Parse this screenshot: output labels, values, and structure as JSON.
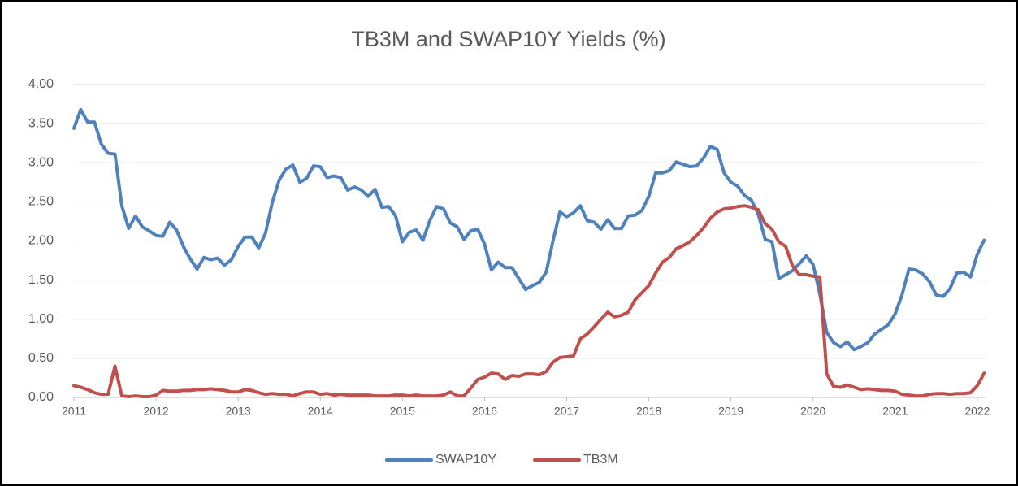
{
  "chart_data": {
    "type": "line",
    "title": "TB3M and SWAP10Y Yields (%)",
    "x": [
      2011,
      2011.083,
      2011.167,
      2011.25,
      2011.333,
      2011.417,
      2011.5,
      2011.583,
      2011.667,
      2011.75,
      2011.833,
      2011.917,
      2012,
      2012.083,
      2012.167,
      2012.25,
      2012.333,
      2012.417,
      2012.5,
      2012.583,
      2012.667,
      2012.75,
      2012.833,
      2012.917,
      2013,
      2013.083,
      2013.167,
      2013.25,
      2013.333,
      2013.417,
      2013.5,
      2013.583,
      2013.667,
      2013.75,
      2013.833,
      2013.917,
      2014,
      2014.083,
      2014.167,
      2014.25,
      2014.333,
      2014.417,
      2014.5,
      2014.583,
      2014.667,
      2014.75,
      2014.833,
      2014.917,
      2015,
      2015.083,
      2015.167,
      2015.25,
      2015.333,
      2015.417,
      2015.5,
      2015.583,
      2015.667,
      2015.75,
      2015.833,
      2015.917,
      2016,
      2016.083,
      2016.167,
      2016.25,
      2016.333,
      2016.417,
      2016.5,
      2016.583,
      2016.667,
      2016.75,
      2016.833,
      2016.917,
      2017,
      2017.083,
      2017.167,
      2017.25,
      2017.333,
      2017.417,
      2017.5,
      2017.583,
      2017.667,
      2017.75,
      2017.833,
      2017.917,
      2018,
      2018.083,
      2018.167,
      2018.25,
      2018.333,
      2018.417,
      2018.5,
      2018.583,
      2018.667,
      2018.75,
      2018.833,
      2018.917,
      2019,
      2019.083,
      2019.167,
      2019.25,
      2019.333,
      2019.417,
      2019.5,
      2019.583,
      2019.667,
      2019.75,
      2019.833,
      2019.917,
      2020,
      2020.083,
      2020.167,
      2020.25,
      2020.333,
      2020.417,
      2020.5,
      2020.583,
      2020.667,
      2020.75,
      2020.833,
      2020.917,
      2021,
      2021.083,
      2021.167,
      2021.25,
      2021.333,
      2021.417,
      2021.5,
      2021.583,
      2021.667,
      2021.75,
      2021.833,
      2021.917,
      2022,
      2022.083
    ],
    "series": [
      {
        "name": "SWAP10Y",
        "color": "#4f81bd",
        "values": [
          3.44,
          3.68,
          3.52,
          3.52,
          3.24,
          3.12,
          3.11,
          2.45,
          2.16,
          2.32,
          2.18,
          2.13,
          2.07,
          2.06,
          2.24,
          2.14,
          1.93,
          1.77,
          1.64,
          1.79,
          1.76,
          1.78,
          1.69,
          1.76,
          1.93,
          2.05,
          2.05,
          1.91,
          2.1,
          2.5,
          2.78,
          2.92,
          2.97,
          2.75,
          2.8,
          2.96,
          2.95,
          2.81,
          2.83,
          2.81,
          2.65,
          2.69,
          2.65,
          2.57,
          2.66,
          2.43,
          2.44,
          2.32,
          1.99,
          2.11,
          2.14,
          2.01,
          2.26,
          2.44,
          2.41,
          2.23,
          2.18,
          2.02,
          2.13,
          2.15,
          1.96,
          1.63,
          1.73,
          1.66,
          1.66,
          1.52,
          1.38,
          1.43,
          1.47,
          1.6,
          2.0,
          2.37,
          2.31,
          2.36,
          2.45,
          2.26,
          2.24,
          2.15,
          2.27,
          2.16,
          2.16,
          2.32,
          2.33,
          2.39,
          2.57,
          2.87,
          2.87,
          2.9,
          3.01,
          2.98,
          2.95,
          2.96,
          3.06,
          3.21,
          3.17,
          2.87,
          2.75,
          2.7,
          2.58,
          2.52,
          2.34,
          2.02,
          1.99,
          1.52,
          1.57,
          1.62,
          1.71,
          1.81,
          1.7,
          1.32,
          0.83,
          0.7,
          0.65,
          0.71,
          0.61,
          0.65,
          0.7,
          0.81,
          0.87,
          0.93,
          1.07,
          1.31,
          1.64,
          1.63,
          1.58,
          1.48,
          1.31,
          1.29,
          1.39,
          1.59,
          1.6,
          1.54,
          1.83,
          2.01
        ]
      },
      {
        "name": "TB3M",
        "color": "#c0504d",
        "values": [
          0.15,
          0.13,
          0.1,
          0.06,
          0.04,
          0.04,
          0.4,
          0.02,
          0.01,
          0.02,
          0.01,
          0.01,
          0.03,
          0.09,
          0.08,
          0.08,
          0.09,
          0.09,
          0.1,
          0.1,
          0.11,
          0.1,
          0.09,
          0.07,
          0.07,
          0.1,
          0.09,
          0.06,
          0.04,
          0.05,
          0.04,
          0.04,
          0.02,
          0.05,
          0.07,
          0.07,
          0.04,
          0.05,
          0.03,
          0.04,
          0.03,
          0.03,
          0.03,
          0.03,
          0.02,
          0.02,
          0.02,
          0.03,
          0.03,
          0.02,
          0.03,
          0.02,
          0.02,
          0.02,
          0.03,
          0.07,
          0.02,
          0.02,
          0.12,
          0.23,
          0.26,
          0.31,
          0.3,
          0.23,
          0.28,
          0.27,
          0.3,
          0.3,
          0.29,
          0.33,
          0.45,
          0.51,
          0.52,
          0.53,
          0.75,
          0.81,
          0.9,
          1.0,
          1.09,
          1.03,
          1.05,
          1.09,
          1.25,
          1.34,
          1.43,
          1.59,
          1.73,
          1.79,
          1.9,
          1.94,
          1.99,
          2.07,
          2.17,
          2.29,
          2.37,
          2.41,
          2.42,
          2.44,
          2.45,
          2.43,
          2.4,
          2.22,
          2.15,
          1.99,
          1.93,
          1.68,
          1.57,
          1.57,
          1.55,
          1.54,
          0.3,
          0.14,
          0.13,
          0.16,
          0.13,
          0.1,
          0.11,
          0.1,
          0.09,
          0.09,
          0.08,
          0.04,
          0.03,
          0.02,
          0.02,
          0.04,
          0.05,
          0.05,
          0.04,
          0.05,
          0.05,
          0.06,
          0.15,
          0.31
        ]
      }
    ],
    "xlim": [
      2011,
      2022.1
    ],
    "xticks": [
      2011,
      2012,
      2013,
      2014,
      2015,
      2016,
      2017,
      2018,
      2019,
      2020,
      2021,
      2022
    ],
    "ylim": [
      0,
      4
    ],
    "yticks": [
      {
        "value": 0,
        "label": "0.00"
      },
      {
        "value": 0.5,
        "label": "0.50"
      },
      {
        "value": 1,
        "label": "1.00"
      },
      {
        "value": 1.5,
        "label": "1.50"
      },
      {
        "value": 2,
        "label": "2.00"
      },
      {
        "value": 2.5,
        "label": "2.50"
      },
      {
        "value": 3,
        "label": "3.00"
      },
      {
        "value": 3.5,
        "label": "3.50"
      },
      {
        "value": 4,
        "label": "4.00"
      }
    ],
    "grid": true,
    "legend": "bottom"
  }
}
